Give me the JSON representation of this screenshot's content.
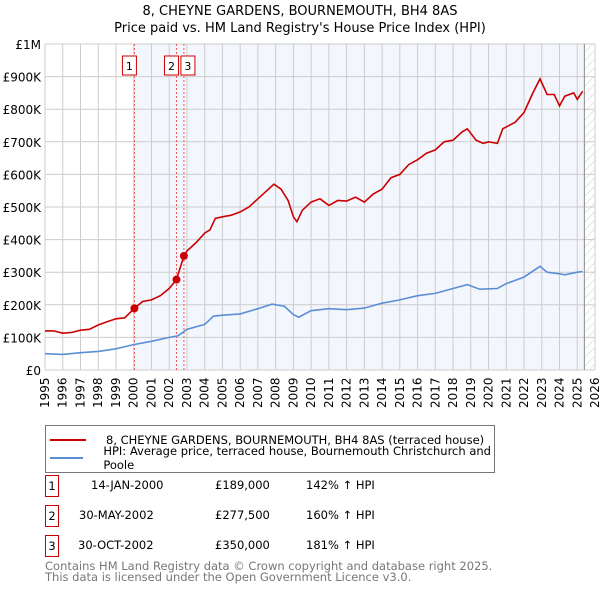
{
  "chart_data": {
    "type": "line",
    "title": "8, CHEYNE GARDENS, BOURNEMOUTH, BH4 8AS",
    "subtitle": "Price paid vs. HM Land Registry's House Price Index (HPI)",
    "xlim": [
      1995,
      2026
    ],
    "ylim": [
      0,
      1000000
    ],
    "x_ticks": [
      "1995",
      "1996",
      "1997",
      "1998",
      "1999",
      "2000",
      "2001",
      "2002",
      "2003",
      "2004",
      "2005",
      "2006",
      "2007",
      "2008",
      "2009",
      "2010",
      "2011",
      "2012",
      "2013",
      "2014",
      "2015",
      "2016",
      "2017",
      "2018",
      "2019",
      "2020",
      "2021",
      "2022",
      "2023",
      "2024",
      "2025",
      "2026"
    ],
    "y_ticks": [
      {
        "v": 0,
        "label": "£0"
      },
      {
        "v": 100000,
        "label": "£100K"
      },
      {
        "v": 200000,
        "label": "£200K"
      },
      {
        "v": 300000,
        "label": "£300K"
      },
      {
        "v": 400000,
        "label": "£400K"
      },
      {
        "v": 500000,
        "label": "£500K"
      },
      {
        "v": 600000,
        "label": "£600K"
      },
      {
        "v": 700000,
        "label": "£700K"
      },
      {
        "v": 800000,
        "label": "£800K"
      },
      {
        "v": 900000,
        "label": "£900K"
      },
      {
        "v": 1000000,
        "label": "£1M"
      }
    ],
    "grid": true,
    "shaded_from": 2000.04,
    "forecast_from": 2025.4,
    "series": [
      {
        "name": "8, CHEYNE GARDENS, BOURNEMOUTH, BH4 8AS (terraced house)",
        "color": "#cc0000",
        "x": [
          1995,
          1995.5,
          1996,
          1996.5,
          1997,
          1997.5,
          1998,
          1998.5,
          1999,
          1999.5,
          2000.04,
          2000.5,
          2001,
          2001.5,
          2002,
          2002.41,
          2002.83,
          2003,
          2003.5,
          2004,
          2004.3,
          2004.6,
          2005,
          2005.5,
          2006,
          2006.5,
          2007,
          2007.5,
          2007.9,
          2008.3,
          2008.7,
          2009,
          2009.2,
          2009.5,
          2010,
          2010.5,
          2011,
          2011.5,
          2012,
          2012.5,
          2013,
          2013.5,
          2014,
          2014.5,
          2015,
          2015.5,
          2016,
          2016.5,
          2017,
          2017.5,
          2018,
          2018.5,
          2018.8,
          2019.3,
          2019.7,
          2020,
          2020.5,
          2020.8,
          2021.5,
          2022,
          2022.5,
          2022.9,
          2023.3,
          2023.7,
          2024,
          2024.3,
          2024.8,
          2025,
          2025.3
        ],
        "y": [
          120000,
          120000,
          113000,
          115000,
          122000,
          125000,
          138000,
          148000,
          157000,
          160000,
          189000,
          210000,
          215000,
          228000,
          250000,
          277500,
          350000,
          365000,
          390000,
          420000,
          430000,
          465000,
          470000,
          475000,
          485000,
          500000,
          525000,
          550000,
          570000,
          555000,
          520000,
          470000,
          455000,
          490000,
          515000,
          525000,
          505000,
          520000,
          518000,
          530000,
          515000,
          540000,
          555000,
          590000,
          600000,
          630000,
          645000,
          665000,
          675000,
          700000,
          705000,
          730000,
          740000,
          705000,
          695000,
          700000,
          695000,
          740000,
          760000,
          790000,
          850000,
          893000,
          845000,
          845000,
          810000,
          840000,
          850000,
          830000,
          855000
        ]
      },
      {
        "name": "HPI: Average price, terraced house, Bournemouth Christchurch and Poole",
        "color": "#5b8fd4",
        "x": [
          1995,
          1996,
          1997,
          1998,
          1999,
          2000,
          2001,
          2002,
          2002.5,
          2003,
          2004,
          2004.5,
          2005,
          2006,
          2007,
          2007.8,
          2008.5,
          2009,
          2009.3,
          2010,
          2011,
          2012,
          2013,
          2014,
          2015,
          2016,
          2017,
          2018,
          2018.8,
          2019.5,
          2020.5,
          2021,
          2022,
          2022.9,
          2023.3,
          2024,
          2024.3,
          2025,
          2025.3
        ],
        "y": [
          50000,
          48000,
          53000,
          57000,
          65000,
          78000,
          88000,
          100000,
          105000,
          125000,
          140000,
          165000,
          168000,
          172000,
          188000,
          202000,
          195000,
          170000,
          162000,
          182000,
          188000,
          185000,
          190000,
          205000,
          215000,
          228000,
          235000,
          250000,
          262000,
          248000,
          250000,
          265000,
          285000,
          318000,
          300000,
          295000,
          292000,
          300000,
          302000
        ]
      }
    ],
    "sales": [
      {
        "label": "1",
        "x": 2000.04,
        "price": 189000,
        "date": "14-JAN-2000",
        "price_text": "£189,000",
        "hpi_text": "142% ↑ HPI"
      },
      {
        "label": "2",
        "x": 2002.41,
        "price": 277500,
        "date": "30-MAY-2002",
        "price_text": "£277,500",
        "hpi_text": "160% ↑ HPI"
      },
      {
        "label": "3",
        "x": 2002.83,
        "price": 350000,
        "date": "30-OCT-2002",
        "price_text": "£350,000",
        "hpi_text": "181% ↑ HPI"
      }
    ]
  },
  "footer": {
    "line1": "Contains HM Land Registry data © Crown copyright and database right 2025.",
    "line2": "This data is licensed under the Open Government Licence v3.0."
  }
}
